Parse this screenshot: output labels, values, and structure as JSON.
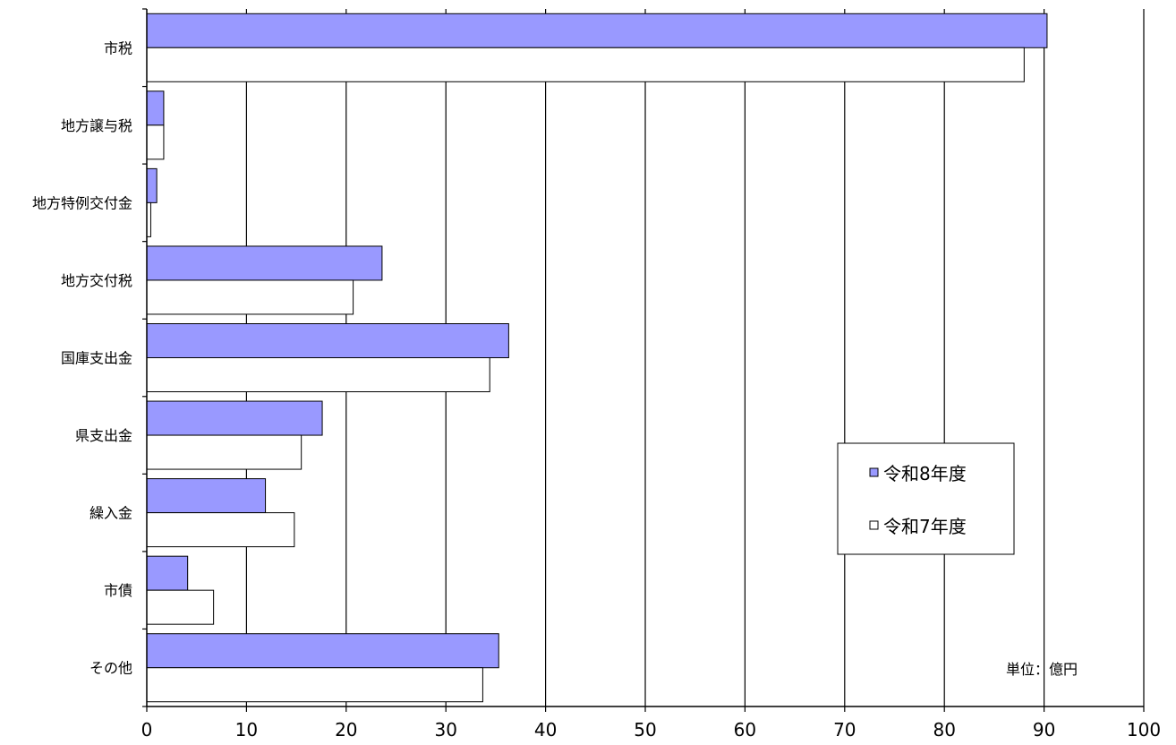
{
  "chart_data": {
    "type": "bar",
    "orientation": "horizontal",
    "categories": [
      "市税",
      "地方譲与税",
      "地方特例交付金",
      "地方交付税",
      "国庫支出金",
      "県支出金",
      "繰入金",
      "市債",
      "その他"
    ],
    "series": [
      {
        "name": "令和8年度",
        "color": "#9999ff",
        "values": [
          90.3,
          1.7,
          1.0,
          23.6,
          36.3,
          17.6,
          11.9,
          4.1,
          35.3
        ]
      },
      {
        "name": "令和7年度",
        "color": "#ffffff",
        "values": [
          88.0,
          1.7,
          0.4,
          20.7,
          34.4,
          15.5,
          14.8,
          6.7,
          33.7
        ]
      }
    ],
    "xlim": [
      0,
      100
    ],
    "xticks": [
      0,
      10,
      20,
      30,
      40,
      50,
      60,
      70,
      80,
      90,
      100
    ],
    "grid": "vertical",
    "legend_position": "right",
    "unit_note": "単位：億円"
  }
}
